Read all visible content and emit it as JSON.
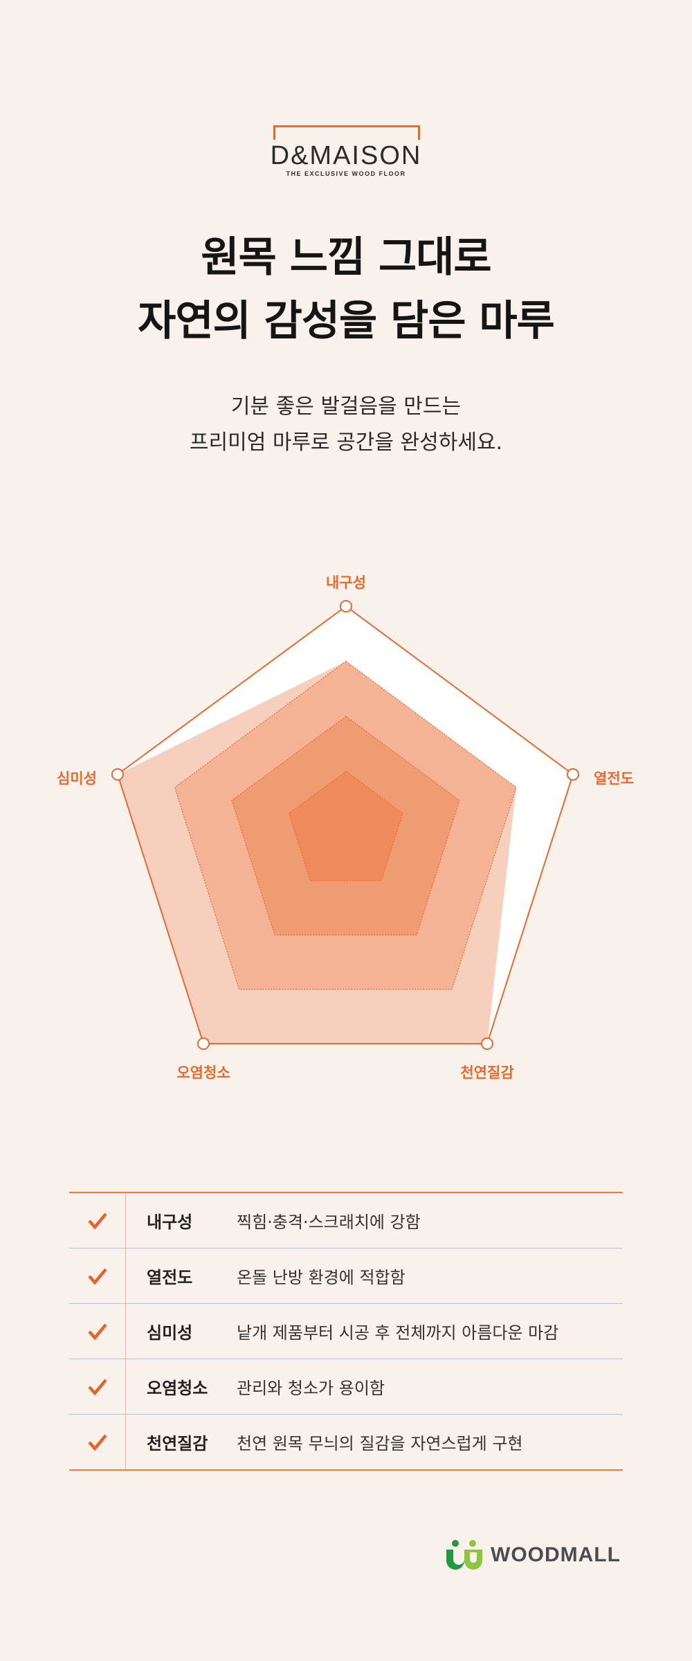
{
  "brand": {
    "name": "D&MAISON",
    "tagline": "THE EXCLUSIVE WOOD FLOOR",
    "accent": "#ee6a1e"
  },
  "headline": {
    "line1": "원목 느낌 그대로",
    "line2": "자연의 감성을 담은 마루"
  },
  "subtitle": {
    "line1": "기분 좋은 발걸음을 만드는",
    "line2": "프리미엄 마루로 공간을 완성하세요."
  },
  "chart_data": {
    "type": "radar",
    "axes": [
      "내구성",
      "열전도",
      "천연질감",
      "오염청소",
      "심미성"
    ],
    "range": [
      0,
      4
    ],
    "grid_levels": [
      1,
      2,
      3,
      4
    ],
    "values": [
      3,
      3,
      4,
      4,
      4
    ],
    "colors": {
      "outline": "#e8692f",
      "outer_fill": "#ffffff",
      "data_fill": "#f7d0bd",
      "ring3": "#f4b394",
      "ring2": "#f09c73",
      "ring1": "#ee8a5c"
    }
  },
  "features": [
    {
      "icon": "check-icon",
      "name": "내구성",
      "desc": "찍힘·충격·스크래치에 강함"
    },
    {
      "icon": "check-icon",
      "name": "열전도",
      "desc": "온돌 난방 환경에 적합함"
    },
    {
      "icon": "check-icon",
      "name": "심미성",
      "desc": "낱개 제품부터 시공 후 전체까지 아름다운 마감"
    },
    {
      "icon": "check-icon",
      "name": "오염청소",
      "desc": "관리와 청소가 용이함"
    },
    {
      "icon": "check-icon",
      "name": "천연질감",
      "desc": "천연 원목 무늬의 질감을 자연스럽게 구현"
    }
  ],
  "footer": {
    "logo_text": "WOODMALL",
    "logo_colors": [
      "#1f9a3f",
      "#8cc63f"
    ]
  }
}
